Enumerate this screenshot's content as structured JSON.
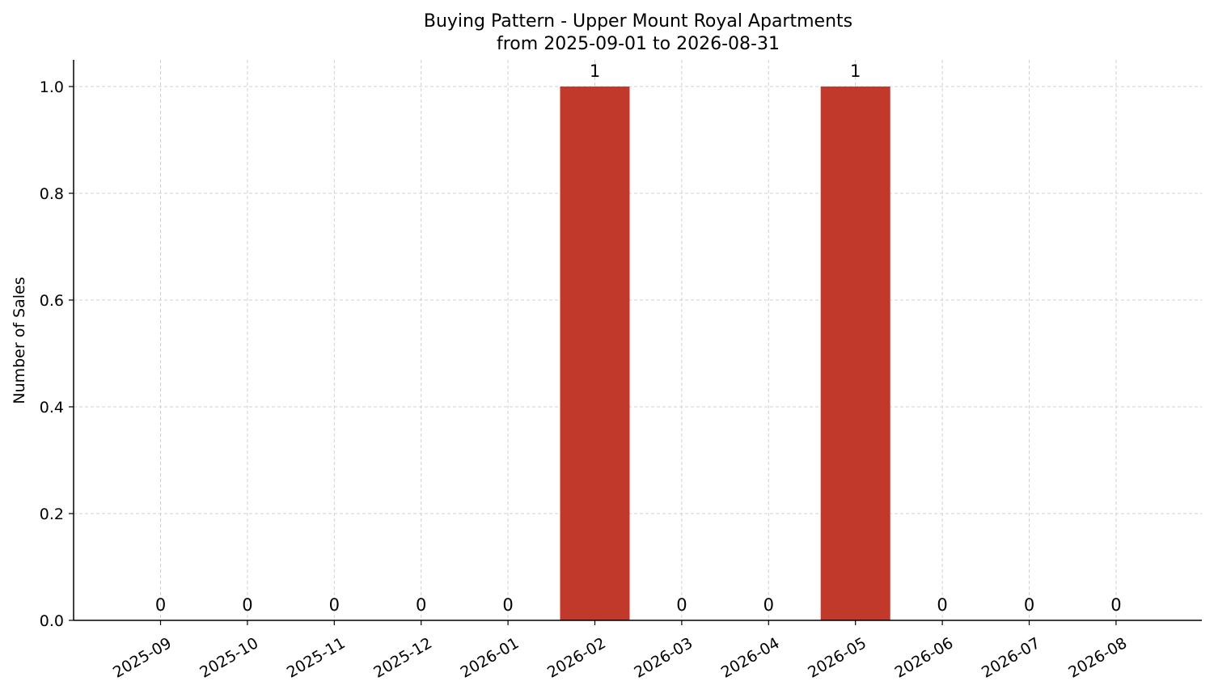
{
  "chart_data": {
    "type": "bar",
    "title": "Buying Pattern - Upper Mount Royal Apartments",
    "subtitle": "from 2025-09-01 to 2026-08-31",
    "xlabel": "",
    "ylabel": "Number of Sales",
    "categories": [
      "2025-09",
      "2025-10",
      "2025-11",
      "2025-12",
      "2026-01",
      "2026-02",
      "2026-03",
      "2026-04",
      "2026-05",
      "2026-06",
      "2026-07",
      "2026-08"
    ],
    "values": [
      0,
      0,
      0,
      0,
      0,
      1,
      0,
      0,
      1,
      0,
      0,
      0
    ],
    "data_labels": [
      "0",
      "0",
      "0",
      "0",
      "0",
      "1",
      "0",
      "0",
      "1",
      "0",
      "0",
      "0"
    ],
    "ylim": [
      0,
      1.05
    ],
    "yticks": [
      0.0,
      0.2,
      0.4,
      0.6,
      0.8,
      1.0
    ],
    "ytick_labels": [
      "0.0",
      "0.2",
      "0.4",
      "0.6",
      "0.8",
      "1.0"
    ],
    "bar_color": "#c0392b",
    "grid": true,
    "legend": "none"
  }
}
